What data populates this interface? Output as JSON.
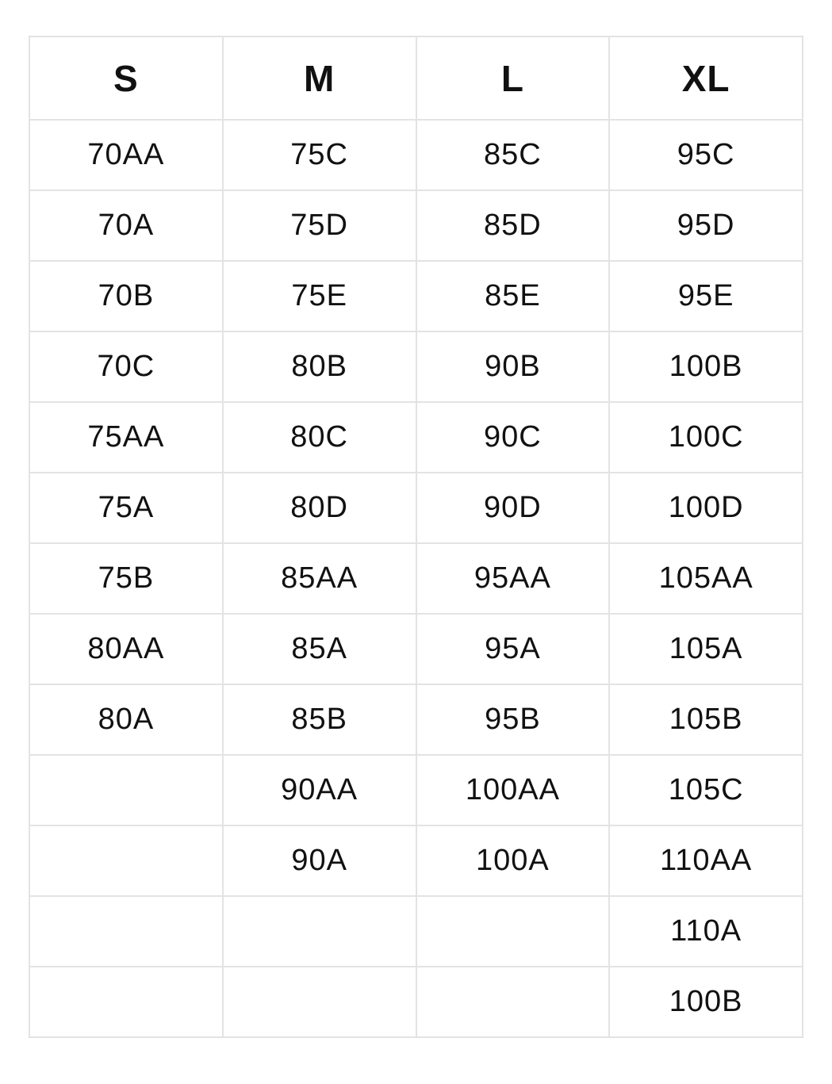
{
  "table": {
    "title": "size-conversion-chart",
    "columns": [
      "S",
      "M",
      "L",
      "XL"
    ],
    "rows": [
      [
        "70AA",
        "75C",
        "85C",
        "95C"
      ],
      [
        "70A",
        "75D",
        "85D",
        "95D"
      ],
      [
        "70B",
        "75E",
        "85E",
        "95E"
      ],
      [
        "70C",
        "80B",
        "90B",
        "100B"
      ],
      [
        "75AA",
        "80C",
        "90C",
        "100C"
      ],
      [
        "75A",
        "80D",
        "90D",
        "100D"
      ],
      [
        "75B",
        "85AA",
        "95AA",
        "105AA"
      ],
      [
        "80AA",
        "85A",
        "95A",
        "105A"
      ],
      [
        "80A",
        "85B",
        "95B",
        "105B"
      ],
      [
        "",
        "90AA",
        "100AA",
        "105C"
      ],
      [
        "",
        "90A",
        "100A",
        "110AA"
      ],
      [
        "",
        "",
        "",
        "110A"
      ],
      [
        "",
        "",
        "",
        "100B"
      ]
    ]
  },
  "colors": {
    "background": "#ffffff",
    "border": "#e3e3e3",
    "text": "#111111"
  }
}
